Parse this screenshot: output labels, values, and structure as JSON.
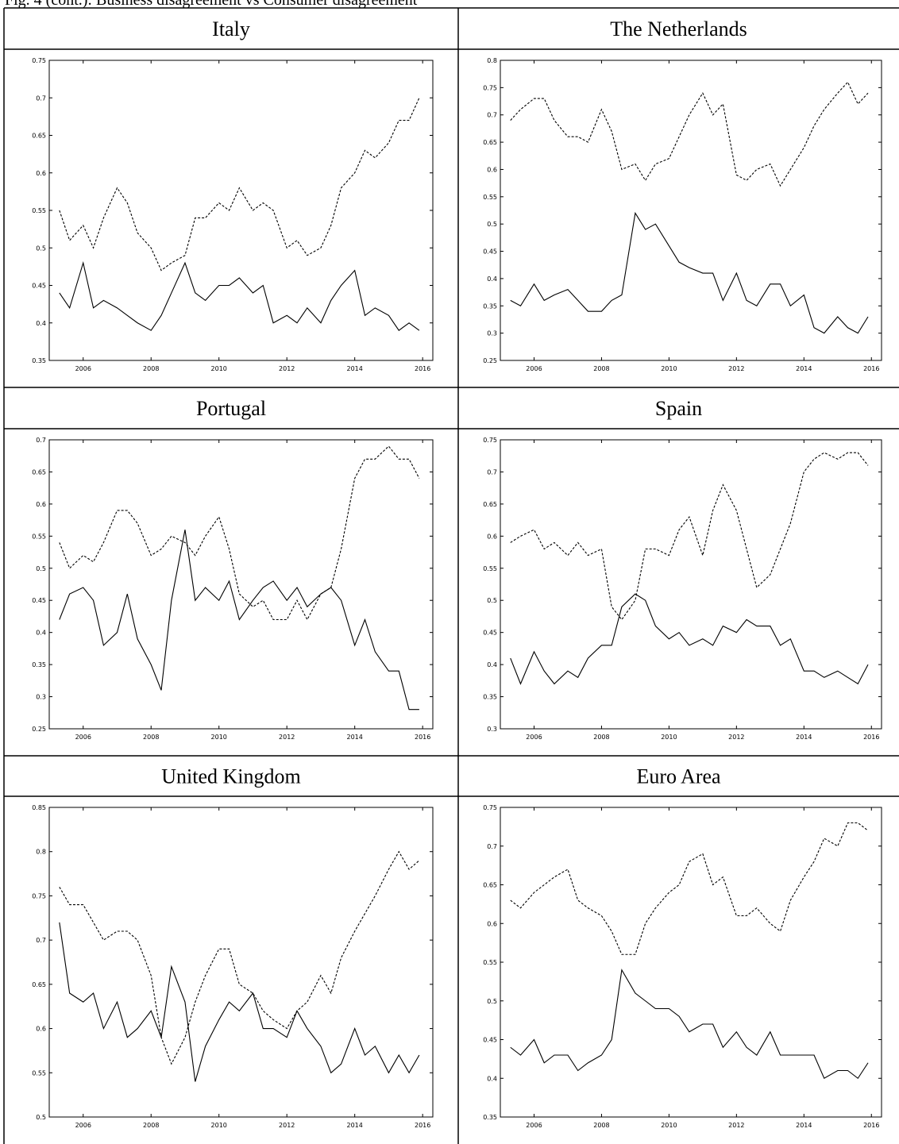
{
  "caption": "Fig. 4 (cont.): Business disagreement vs Consumer disagreement",
  "chart_data": [
    {
      "type": "line",
      "title": "Italy",
      "xlim": [
        2005,
        2016.3
      ],
      "xticks": [
        2006,
        2008,
        2010,
        2012,
        2014,
        2016
      ],
      "ylim": [
        0.35,
        0.75
      ],
      "yticks": [
        0.35,
        0.4,
        0.45,
        0.5,
        0.55,
        0.6,
        0.65,
        0.7,
        0.75
      ],
      "x": [
        2005.3,
        2005.6,
        2006.0,
        2006.3,
        2006.6,
        2007.0,
        2007.3,
        2007.6,
        2008.0,
        2008.3,
        2008.6,
        2009.0,
        2009.3,
        2009.6,
        2010.0,
        2010.3,
        2010.6,
        2011.0,
        2011.3,
        2011.6,
        2012.0,
        2012.3,
        2012.6,
        2013.0,
        2013.3,
        2013.6,
        2014.0,
        2014.3,
        2014.6,
        2015.0,
        2015.3,
        2015.6,
        2015.9
      ],
      "series": [
        {
          "color": "#000000",
          "style": "dashed",
          "values": [
            0.55,
            0.51,
            0.53,
            0.5,
            0.54,
            0.58,
            0.56,
            0.52,
            0.5,
            0.47,
            0.48,
            0.49,
            0.54,
            0.54,
            0.56,
            0.55,
            0.58,
            0.55,
            0.56,
            0.55,
            0.5,
            0.51,
            0.49,
            0.5,
            0.53,
            0.58,
            0.6,
            0.63,
            0.62,
            0.64,
            0.67,
            0.67,
            0.7
          ]
        },
        {
          "color": "#000000",
          "style": "solid",
          "values": [
            0.44,
            0.42,
            0.48,
            0.42,
            0.43,
            0.42,
            0.41,
            0.4,
            0.39,
            0.41,
            0.44,
            0.48,
            0.44,
            0.43,
            0.45,
            0.45,
            0.46,
            0.44,
            0.45,
            0.4,
            0.41,
            0.4,
            0.42,
            0.4,
            0.43,
            0.45,
            0.47,
            0.41,
            0.42,
            0.41,
            0.39,
            0.4,
            0.39
          ]
        }
      ]
    },
    {
      "type": "line",
      "title": "The Netherlands",
      "xlim": [
        2005,
        2016.3
      ],
      "xticks": [
        2006,
        2008,
        2010,
        2012,
        2014,
        2016
      ],
      "ylim": [
        0.25,
        0.8
      ],
      "yticks": [
        0.25,
        0.3,
        0.35,
        0.4,
        0.45,
        0.5,
        0.55,
        0.6,
        0.65,
        0.7,
        0.75,
        0.8
      ],
      "x": [
        2005.3,
        2005.6,
        2006.0,
        2006.3,
        2006.6,
        2007.0,
        2007.3,
        2007.6,
        2008.0,
        2008.3,
        2008.6,
        2009.0,
        2009.3,
        2009.6,
        2010.0,
        2010.3,
        2010.6,
        2011.0,
        2011.3,
        2011.6,
        2012.0,
        2012.3,
        2012.6,
        2013.0,
        2013.3,
        2013.6,
        2014.0,
        2014.3,
        2014.6,
        2015.0,
        2015.3,
        2015.6,
        2015.9
      ],
      "series": [
        {
          "color": "#000000",
          "style": "dashed",
          "values": [
            0.69,
            0.71,
            0.73,
            0.73,
            0.69,
            0.66,
            0.66,
            0.65,
            0.71,
            0.67,
            0.6,
            0.61,
            0.58,
            0.61,
            0.62,
            0.66,
            0.7,
            0.74,
            0.7,
            0.72,
            0.59,
            0.58,
            0.6,
            0.61,
            0.57,
            0.6,
            0.64,
            0.68,
            0.71,
            0.74,
            0.76,
            0.72,
            0.74
          ]
        },
        {
          "color": "#000000",
          "style": "solid",
          "values": [
            0.36,
            0.35,
            0.39,
            0.36,
            0.37,
            0.38,
            0.36,
            0.34,
            0.34,
            0.36,
            0.37,
            0.52,
            0.49,
            0.5,
            0.46,
            0.43,
            0.42,
            0.41,
            0.41,
            0.36,
            0.41,
            0.36,
            0.35,
            0.39,
            0.39,
            0.35,
            0.37,
            0.31,
            0.3,
            0.33,
            0.31,
            0.3,
            0.33
          ]
        }
      ]
    },
    {
      "type": "line",
      "title": "Portugal",
      "xlim": [
        2005,
        2016.3
      ],
      "xticks": [
        2006,
        2008,
        2010,
        2012,
        2014,
        2016
      ],
      "ylim": [
        0.25,
        0.7
      ],
      "yticks": [
        0.25,
        0.3,
        0.35,
        0.4,
        0.45,
        0.5,
        0.55,
        0.6,
        0.65,
        0.7
      ],
      "x": [
        2005.3,
        2005.6,
        2006.0,
        2006.3,
        2006.6,
        2007.0,
        2007.3,
        2007.6,
        2008.0,
        2008.3,
        2008.6,
        2009.0,
        2009.3,
        2009.6,
        2010.0,
        2010.3,
        2010.6,
        2011.0,
        2011.3,
        2011.6,
        2012.0,
        2012.3,
        2012.6,
        2013.0,
        2013.3,
        2013.6,
        2014.0,
        2014.3,
        2014.6,
        2015.0,
        2015.3,
        2015.6,
        2015.9
      ],
      "series": [
        {
          "color": "#000000",
          "style": "dashed",
          "values": [
            0.54,
            0.5,
            0.52,
            0.51,
            0.54,
            0.59,
            0.59,
            0.57,
            0.52,
            0.53,
            0.55,
            0.54,
            0.52,
            0.55,
            0.58,
            0.53,
            0.46,
            0.44,
            0.45,
            0.42,
            0.42,
            0.45,
            0.42,
            0.46,
            0.47,
            0.53,
            0.64,
            0.67,
            0.67,
            0.69,
            0.67,
            0.67,
            0.64
          ]
        },
        {
          "color": "#000000",
          "style": "solid",
          "values": [
            0.42,
            0.46,
            0.47,
            0.45,
            0.38,
            0.4,
            0.46,
            0.39,
            0.35,
            0.31,
            0.45,
            0.56,
            0.45,
            0.47,
            0.45,
            0.48,
            0.42,
            0.45,
            0.47,
            0.48,
            0.45,
            0.47,
            0.44,
            0.46,
            0.47,
            0.45,
            0.38,
            0.42,
            0.37,
            0.34,
            0.34,
            0.28,
            0.28
          ]
        }
      ]
    },
    {
      "type": "line",
      "title": "Spain",
      "xlim": [
        2005,
        2016.3
      ],
      "xticks": [
        2006,
        2008,
        2010,
        2012,
        2014,
        2016
      ],
      "ylim": [
        0.3,
        0.75
      ],
      "yticks": [
        0.3,
        0.35,
        0.4,
        0.45,
        0.5,
        0.55,
        0.6,
        0.65,
        0.7,
        0.75
      ],
      "x": [
        2005.3,
        2005.6,
        2006.0,
        2006.3,
        2006.6,
        2007.0,
        2007.3,
        2007.6,
        2008.0,
        2008.3,
        2008.6,
        2009.0,
        2009.3,
        2009.6,
        2010.0,
        2010.3,
        2010.6,
        2011.0,
        2011.3,
        2011.6,
        2012.0,
        2012.3,
        2012.6,
        2013.0,
        2013.3,
        2013.6,
        2014.0,
        2014.3,
        2014.6,
        2015.0,
        2015.3,
        2015.6,
        2015.9
      ],
      "series": [
        {
          "color": "#000000",
          "style": "dashed",
          "values": [
            0.59,
            0.6,
            0.61,
            0.58,
            0.59,
            0.57,
            0.59,
            0.57,
            0.58,
            0.49,
            0.47,
            0.5,
            0.58,
            0.58,
            0.57,
            0.61,
            0.63,
            0.57,
            0.64,
            0.68,
            0.64,
            0.58,
            0.52,
            0.54,
            0.58,
            0.62,
            0.7,
            0.72,
            0.73,
            0.72,
            0.73,
            0.73,
            0.71
          ]
        },
        {
          "color": "#000000",
          "style": "solid",
          "values": [
            0.41,
            0.37,
            0.42,
            0.39,
            0.37,
            0.39,
            0.38,
            0.41,
            0.43,
            0.43,
            0.49,
            0.51,
            0.5,
            0.46,
            0.44,
            0.45,
            0.43,
            0.44,
            0.43,
            0.46,
            0.45,
            0.47,
            0.46,
            0.46,
            0.43,
            0.44,
            0.39,
            0.39,
            0.38,
            0.39,
            0.38,
            0.37,
            0.4
          ]
        }
      ]
    },
    {
      "type": "line",
      "title": "United Kingdom",
      "xlim": [
        2005,
        2016.3
      ],
      "xticks": [
        2006,
        2008,
        2010,
        2012,
        2014,
        2016
      ],
      "ylim": [
        0.5,
        0.85
      ],
      "yticks": [
        0.5,
        0.55,
        0.6,
        0.65,
        0.7,
        0.75,
        0.8,
        0.85
      ],
      "x": [
        2005.3,
        2005.6,
        2006.0,
        2006.3,
        2006.6,
        2007.0,
        2007.3,
        2007.6,
        2008.0,
        2008.3,
        2008.6,
        2009.0,
        2009.3,
        2009.6,
        2010.0,
        2010.3,
        2010.6,
        2011.0,
        2011.3,
        2011.6,
        2012.0,
        2012.3,
        2012.6,
        2013.0,
        2013.3,
        2013.6,
        2014.0,
        2014.3,
        2014.6,
        2015.0,
        2015.3,
        2015.6,
        2015.9
      ],
      "series": [
        {
          "color": "#000000",
          "style": "dashed",
          "values": [
            0.76,
            0.74,
            0.74,
            0.72,
            0.7,
            0.71,
            0.71,
            0.7,
            0.66,
            0.59,
            0.56,
            0.59,
            0.63,
            0.66,
            0.69,
            0.69,
            0.65,
            0.64,
            0.62,
            0.61,
            0.6,
            0.62,
            0.63,
            0.66,
            0.64,
            0.68,
            0.71,
            0.73,
            0.75,
            0.78,
            0.8,
            0.78,
            0.79
          ]
        },
        {
          "color": "#000000",
          "style": "solid",
          "values": [
            0.72,
            0.64,
            0.63,
            0.64,
            0.6,
            0.63,
            0.59,
            0.6,
            0.62,
            0.59,
            0.67,
            0.63,
            0.54,
            0.58,
            0.61,
            0.63,
            0.62,
            0.64,
            0.6,
            0.6,
            0.59,
            0.62,
            0.6,
            0.58,
            0.55,
            0.56,
            0.6,
            0.57,
            0.58,
            0.55,
            0.57,
            0.55,
            0.57
          ]
        }
      ]
    },
    {
      "type": "line",
      "title": "Euro Area",
      "xlim": [
        2005,
        2016.3
      ],
      "xticks": [
        2006,
        2008,
        2010,
        2012,
        2014,
        2016
      ],
      "ylim": [
        0.35,
        0.75
      ],
      "yticks": [
        0.35,
        0.4,
        0.45,
        0.5,
        0.55,
        0.6,
        0.65,
        0.7,
        0.75
      ],
      "x": [
        2005.3,
        2005.6,
        2006.0,
        2006.3,
        2006.6,
        2007.0,
        2007.3,
        2007.6,
        2008.0,
        2008.3,
        2008.6,
        2009.0,
        2009.3,
        2009.6,
        2010.0,
        2010.3,
        2010.6,
        2011.0,
        2011.3,
        2011.6,
        2012.0,
        2012.3,
        2012.6,
        2013.0,
        2013.3,
        2013.6,
        2014.0,
        2014.3,
        2014.6,
        2015.0,
        2015.3,
        2015.6,
        2015.9
      ],
      "series": [
        {
          "color": "#000000",
          "style": "dashed",
          "values": [
            0.63,
            0.62,
            0.64,
            0.65,
            0.66,
            0.67,
            0.63,
            0.62,
            0.61,
            0.59,
            0.56,
            0.56,
            0.6,
            0.62,
            0.64,
            0.65,
            0.68,
            0.69,
            0.65,
            0.66,
            0.61,
            0.61,
            0.62,
            0.6,
            0.59,
            0.63,
            0.66,
            0.68,
            0.71,
            0.7,
            0.73,
            0.73,
            0.72
          ]
        },
        {
          "color": "#000000",
          "style": "solid",
          "values": [
            0.44,
            0.43,
            0.45,
            0.42,
            0.43,
            0.43,
            0.41,
            0.42,
            0.43,
            0.45,
            0.54,
            0.51,
            0.5,
            0.49,
            0.49,
            0.48,
            0.46,
            0.47,
            0.47,
            0.44,
            0.46,
            0.44,
            0.43,
            0.46,
            0.43,
            0.43,
            0.43,
            0.43,
            0.4,
            0.41,
            0.41,
            0.4,
            0.42
          ]
        }
      ]
    }
  ]
}
